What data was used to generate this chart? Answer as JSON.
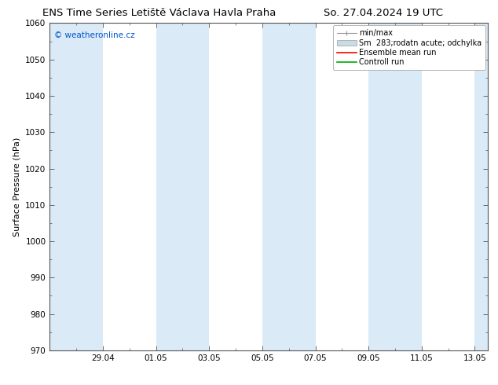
{
  "title_left": "ENS Time Series Letiště Václava Havla Praha",
  "title_right": "So. 27.04.2024 19 UTC",
  "ylabel": "Surface Pressure (hPa)",
  "ylim": [
    970,
    1060
  ],
  "yticks": [
    970,
    980,
    990,
    1000,
    1010,
    1020,
    1030,
    1040,
    1050,
    1060
  ],
  "xtick_labels": [
    "29.04",
    "01.05",
    "03.05",
    "05.05",
    "07.05",
    "09.05",
    "11.05",
    "13.05"
  ],
  "bg_color": "#ffffff",
  "plot_bg_color": "#ffffff",
  "band_color": "#daeaf7",
  "watermark_text": "© weatheronline.cz",
  "watermark_color": "#0055cc",
  "legend_labels": [
    "min/max",
    "Sm  283;rodatn acute; odchylka",
    "Ensemble mean run",
    "Controll run"
  ],
  "title_fontsize": 9.5,
  "axis_label_fontsize": 8,
  "tick_fontsize": 7.5,
  "legend_fontsize": 7
}
